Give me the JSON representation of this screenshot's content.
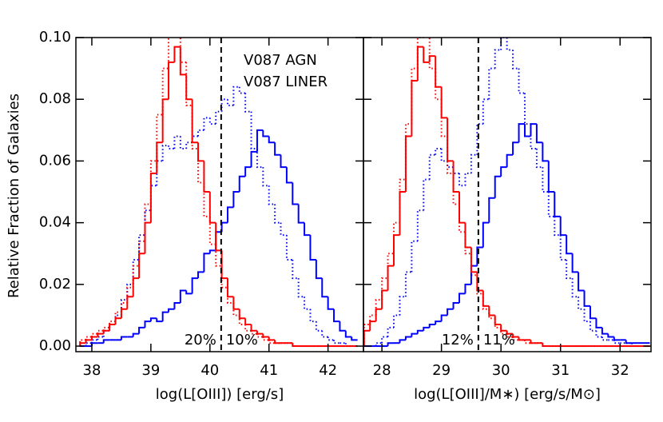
{
  "chart_data": [
    {
      "type": "histogram",
      "ylabel": "Relative Fraction of Galaxies",
      "xlabel": "log(L[OIII]) [erg/s]",
      "xlim": [
        37.73,
        42.6
      ],
      "ylim": [
        -0.0018,
        0.1
      ],
      "xticks": [
        38,
        39,
        40,
        41,
        42
      ],
      "yticks": [
        {
          "value": 0,
          "label": "0.00"
        },
        {
          "value": 0.02,
          "label": "0.02"
        },
        {
          "value": 0.04,
          "label": "0.04"
        },
        {
          "value": 0.06,
          "label": "0.06"
        },
        {
          "value": 0.08,
          "label": "0.08"
        },
        {
          "value": 0.1,
          "label": "0.10"
        }
      ],
      "vline": 40.19,
      "bins": [
        37.8,
        37.9,
        38.0,
        38.1,
        38.2,
        38.3,
        38.4,
        38.5,
        38.6,
        38.7,
        38.8,
        38.9,
        39.0,
        39.1,
        39.2,
        39.3,
        39.4,
        39.5,
        39.6,
        39.7,
        39.8,
        39.9,
        40.0,
        40.1,
        40.2,
        40.3,
        40.4,
        40.5,
        40.6,
        40.7,
        40.8,
        40.9,
        41.0,
        41.1,
        41.2,
        41.3,
        41.4,
        41.5,
        41.6,
        41.7,
        41.8,
        41.9,
        42.0,
        42.1,
        42.2,
        42.3,
        42.4,
        42.5
      ],
      "series": [
        {
          "color": "#0000ff",
          "linestyle": "dotted",
          "values": [
            0,
            0.001,
            0.002,
            0.003,
            0.005,
            0.007,
            0.01,
            0.015,
            0.02,
            0.028,
            0.036,
            0.044,
            0.052,
            0.06,
            0.065,
            0.064,
            0.068,
            0.064,
            0.066,
            0.068,
            0.07,
            0.074,
            0.072,
            0.076,
            0.08,
            0.078,
            0.084,
            0.082,
            0.076,
            0.064,
            0.058,
            0.052,
            0.046,
            0.04,
            0.036,
            0.028,
            0.022,
            0.016,
            0.012,
            0.008,
            0.005,
            0.003,
            0.002,
            0.001,
            0.001,
            0,
            0
          ]
        },
        {
          "color": "#ff0000",
          "linestyle": "dotted",
          "values": [
            0.002,
            0.003,
            0.004,
            0.005,
            0.006,
            0.008,
            0.011,
            0.014,
            0.019,
            0.026,
            0.034,
            0.046,
            0.06,
            0.075,
            0.09,
            0.101,
            0.101,
            0.092,
            0.078,
            0.064,
            0.053,
            0.042,
            0.033,
            0.026,
            0.019,
            0.014,
            0.01,
            0.007,
            0.005,
            0.004,
            0.003,
            0.002,
            0.001,
            0.001,
            0.001,
            0.001,
            0,
            0,
            0,
            0,
            0,
            0,
            0,
            0,
            0,
            0,
            0
          ]
        },
        {
          "name": "V087 AGN",
          "color": "#0000ff",
          "linestyle": "solid",
          "values": [
            0,
            0,
            0.001,
            0.001,
            0.002,
            0.002,
            0.002,
            0.003,
            0.003,
            0.004,
            0.006,
            0.008,
            0.009,
            0.008,
            0.011,
            0.012,
            0.014,
            0.018,
            0.017,
            0.022,
            0.024,
            0.03,
            0.031,
            0.037,
            0.04,
            0.045,
            0.05,
            0.055,
            0.058,
            0.063,
            0.07,
            0.068,
            0.066,
            0.062,
            0.058,
            0.053,
            0.046,
            0.04,
            0.036,
            0.028,
            0.022,
            0.016,
            0.012,
            0.008,
            0.005,
            0.003,
            0.002
          ]
        },
        {
          "name": "V087 LINER",
          "color": "#ff0000",
          "linestyle": "solid",
          "values": [
            0.001,
            0.002,
            0.003,
            0.004,
            0.005,
            0.007,
            0.009,
            0.012,
            0.016,
            0.022,
            0.03,
            0.04,
            0.056,
            0.066,
            0.08,
            0.092,
            0.097,
            0.088,
            0.08,
            0.066,
            0.06,
            0.05,
            0.04,
            0.031,
            0.022,
            0.016,
            0.012,
            0.009,
            0.007,
            0.005,
            0.004,
            0.003,
            0.002,
            0.001,
            0.001,
            0.001,
            0,
            0,
            0,
            0,
            0,
            0,
            0,
            0,
            0,
            0,
            0
          ]
        }
      ],
      "annotations": [
        {
          "text": "20%",
          "color": "#0000ff"
        },
        {
          "text": "10%",
          "color": "#ff0000"
        }
      ]
    },
    {
      "type": "histogram",
      "xlabel": "log(L[OIII]/M∗) [erg/s/M⊙]",
      "xlim": [
        27.69,
        32.52
      ],
      "ylim": [
        -0.0018,
        0.1
      ],
      "xticks": [
        28,
        29,
        30,
        31,
        32
      ],
      "yticks": [
        0,
        0.02,
        0.04,
        0.06,
        0.08,
        0.1
      ],
      "vline": 29.62,
      "bins": [
        27.7,
        27.8,
        27.9,
        28.0,
        28.1,
        28.2,
        28.3,
        28.4,
        28.5,
        28.6,
        28.7,
        28.8,
        28.9,
        29.0,
        29.1,
        29.2,
        29.3,
        29.4,
        29.5,
        29.6,
        29.7,
        29.8,
        29.9,
        30.0,
        30.1,
        30.2,
        30.3,
        30.4,
        30.5,
        30.6,
        30.7,
        30.8,
        30.9,
        31.0,
        31.1,
        31.2,
        31.3,
        31.4,
        31.5,
        31.6,
        31.7,
        31.8,
        31.9,
        32.0,
        32.1,
        32.2,
        32.3,
        32.4,
        32.5
      ],
      "series": [
        {
          "color": "#0000ff",
          "linestyle": "dotted",
          "values": [
            0,
            0,
            0.001,
            0.003,
            0.006,
            0.01,
            0.016,
            0.024,
            0.034,
            0.044,
            0.054,
            0.062,
            0.064,
            0.06,
            0.058,
            0.056,
            0.052,
            0.056,
            0.062,
            0.072,
            0.08,
            0.09,
            0.096,
            0.1,
            0.096,
            0.09,
            0.082,
            0.072,
            0.064,
            0.058,
            0.05,
            0.042,
            0.036,
            0.028,
            0.022,
            0.016,
            0.012,
            0.008,
            0.005,
            0.003,
            0.002,
            0.002,
            0.001,
            0.001,
            0.001,
            0,
            0,
            0
          ]
        },
        {
          "color": "#ff0000",
          "linestyle": "dotted",
          "values": [
            0.007,
            0.01,
            0.015,
            0.022,
            0.03,
            0.04,
            0.054,
            0.072,
            0.09,
            0.1,
            0.101,
            0.09,
            0.08,
            0.068,
            0.056,
            0.046,
            0.037,
            0.03,
            0.023,
            0.017,
            0.012,
            0.009,
            0.006,
            0.004,
            0.003,
            0.002,
            0.002,
            0.001,
            0.001,
            0.001,
            0,
            0,
            0,
            0,
            0,
            0,
            0,
            0,
            0,
            0,
            0,
            0,
            0,
            0,
            0,
            0,
            0,
            0
          ]
        },
        {
          "color": "#0000ff",
          "linestyle": "solid",
          "values": [
            0,
            0,
            0,
            0,
            0.001,
            0.001,
            0.002,
            0.003,
            0.004,
            0.005,
            0.006,
            0.007,
            0.008,
            0.01,
            0.012,
            0.014,
            0.017,
            0.02,
            0.026,
            0.032,
            0.04,
            0.048,
            0.055,
            0.058,
            0.062,
            0.066,
            0.072,
            0.068,
            0.072,
            0.066,
            0.06,
            0.05,
            0.042,
            0.036,
            0.03,
            0.024,
            0.018,
            0.013,
            0.009,
            0.006,
            0.004,
            0.003,
            0.002,
            0.002,
            0.001,
            0.001,
            0.001,
            0.001
          ]
        },
        {
          "color": "#ff0000",
          "linestyle": "solid",
          "values": [
            0.005,
            0.008,
            0.012,
            0.018,
            0.026,
            0.036,
            0.05,
            0.068,
            0.086,
            0.097,
            0.092,
            0.094,
            0.084,
            0.074,
            0.06,
            0.05,
            0.04,
            0.032,
            0.024,
            0.018,
            0.013,
            0.01,
            0.007,
            0.005,
            0.004,
            0.003,
            0.002,
            0.002,
            0.001,
            0.001,
            0,
            0,
            0,
            0,
            0,
            0,
            0,
            0,
            0,
            0,
            0,
            0,
            0,
            0,
            0,
            0,
            0,
            0
          ]
        }
      ],
      "annotations": [
        {
          "text": "12%",
          "color": "#0000ff"
        },
        {
          "text": "11%",
          "color": "#ff0000"
        }
      ]
    }
  ]
}
